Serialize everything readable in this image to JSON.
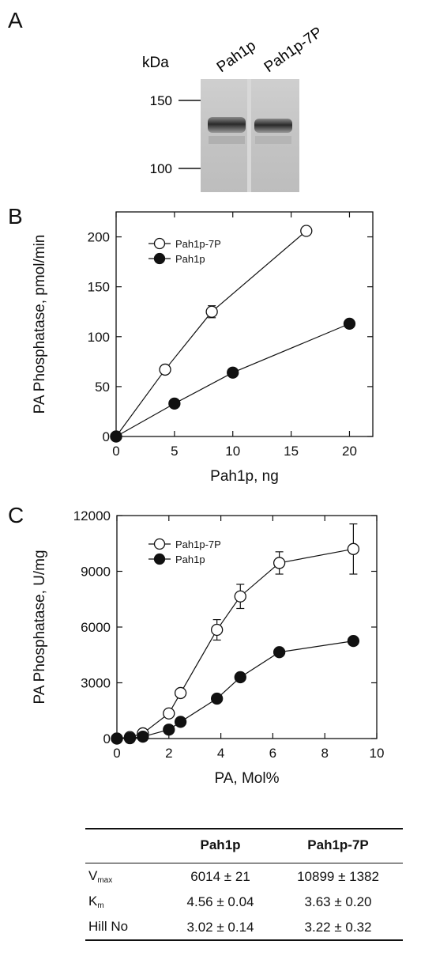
{
  "panels": {
    "a": "A",
    "b": "B",
    "c": "C"
  },
  "gel": {
    "unit_label": "kDa",
    "markers": [
      "150",
      "100"
    ],
    "lanes": [
      "Pah1p",
      "Pah1p-7P"
    ]
  },
  "chart_data": [
    {
      "type": "line",
      "xlabel": "Pah1p, ng",
      "ylabel": "PA Phosphatase, pmol/min",
      "xlim": [
        0,
        22
      ],
      "ylim": [
        0,
        225
      ],
      "xticks": [
        0,
        5,
        10,
        15,
        20
      ],
      "yticks": [
        0,
        50,
        100,
        150,
        200
      ],
      "legend_position": "top-left",
      "series": [
        {
          "name": "Pah1p-7P",
          "marker": "open-circle",
          "x": [
            0,
            4.2,
            8.2,
            16.3
          ],
          "y": [
            0,
            67,
            125,
            206
          ],
          "err": [
            0,
            0,
            6,
            0
          ]
        },
        {
          "name": "Pah1p",
          "marker": "filled-circle",
          "x": [
            0,
            5,
            10,
            20
          ],
          "y": [
            0,
            33,
            64,
            113
          ],
          "err": [
            0,
            0,
            0,
            0
          ]
        }
      ]
    },
    {
      "type": "line",
      "xlabel": "PA, Mol%",
      "ylabel": "PA Phosphatase, U/mg",
      "xlim": [
        0,
        10
      ],
      "ylim": [
        0,
        12000
      ],
      "xticks": [
        0,
        2,
        4,
        6,
        8,
        10
      ],
      "yticks": [
        0,
        3000,
        6000,
        9000,
        12000
      ],
      "legend_position": "top-left",
      "series": [
        {
          "name": "Pah1p-7P",
          "marker": "open-circle",
          "x": [
            0,
            0.5,
            1.0,
            2.0,
            2.45,
            3.85,
            4.75,
            6.25,
            9.1
          ],
          "y": [
            0,
            80,
            280,
            1350,
            2450,
            5850,
            7650,
            9450,
            10200
          ],
          "err": [
            0,
            0,
            0,
            0,
            0,
            550,
            650,
            600,
            1350
          ]
        },
        {
          "name": "Pah1p",
          "marker": "filled-circle",
          "x": [
            0,
            0.5,
            1.0,
            2.0,
            2.45,
            3.85,
            4.75,
            6.25,
            9.1
          ],
          "y": [
            0,
            20,
            100,
            480,
            900,
            2150,
            3300,
            4650,
            5250
          ],
          "err": [
            0,
            0,
            0,
            0,
            0,
            0,
            150,
            0,
            0
          ]
        }
      ]
    }
  ],
  "table": {
    "headers": [
      "",
      "Pah1p",
      "Pah1p-7P"
    ],
    "rows": [
      {
        "label": "V",
        "sub": "max",
        "c1": "6014 ± 21",
        "c2": "10899 ± 1382"
      },
      {
        "label": "K",
        "sub": "m",
        "c1": "4.56 ± 0.04",
        "c2": "3.63 ± 0.20"
      },
      {
        "label": "Hill No",
        "sub": "",
        "c1": "3.02 ± 0.14",
        "c2": "3.22 ± 0.32"
      }
    ]
  }
}
